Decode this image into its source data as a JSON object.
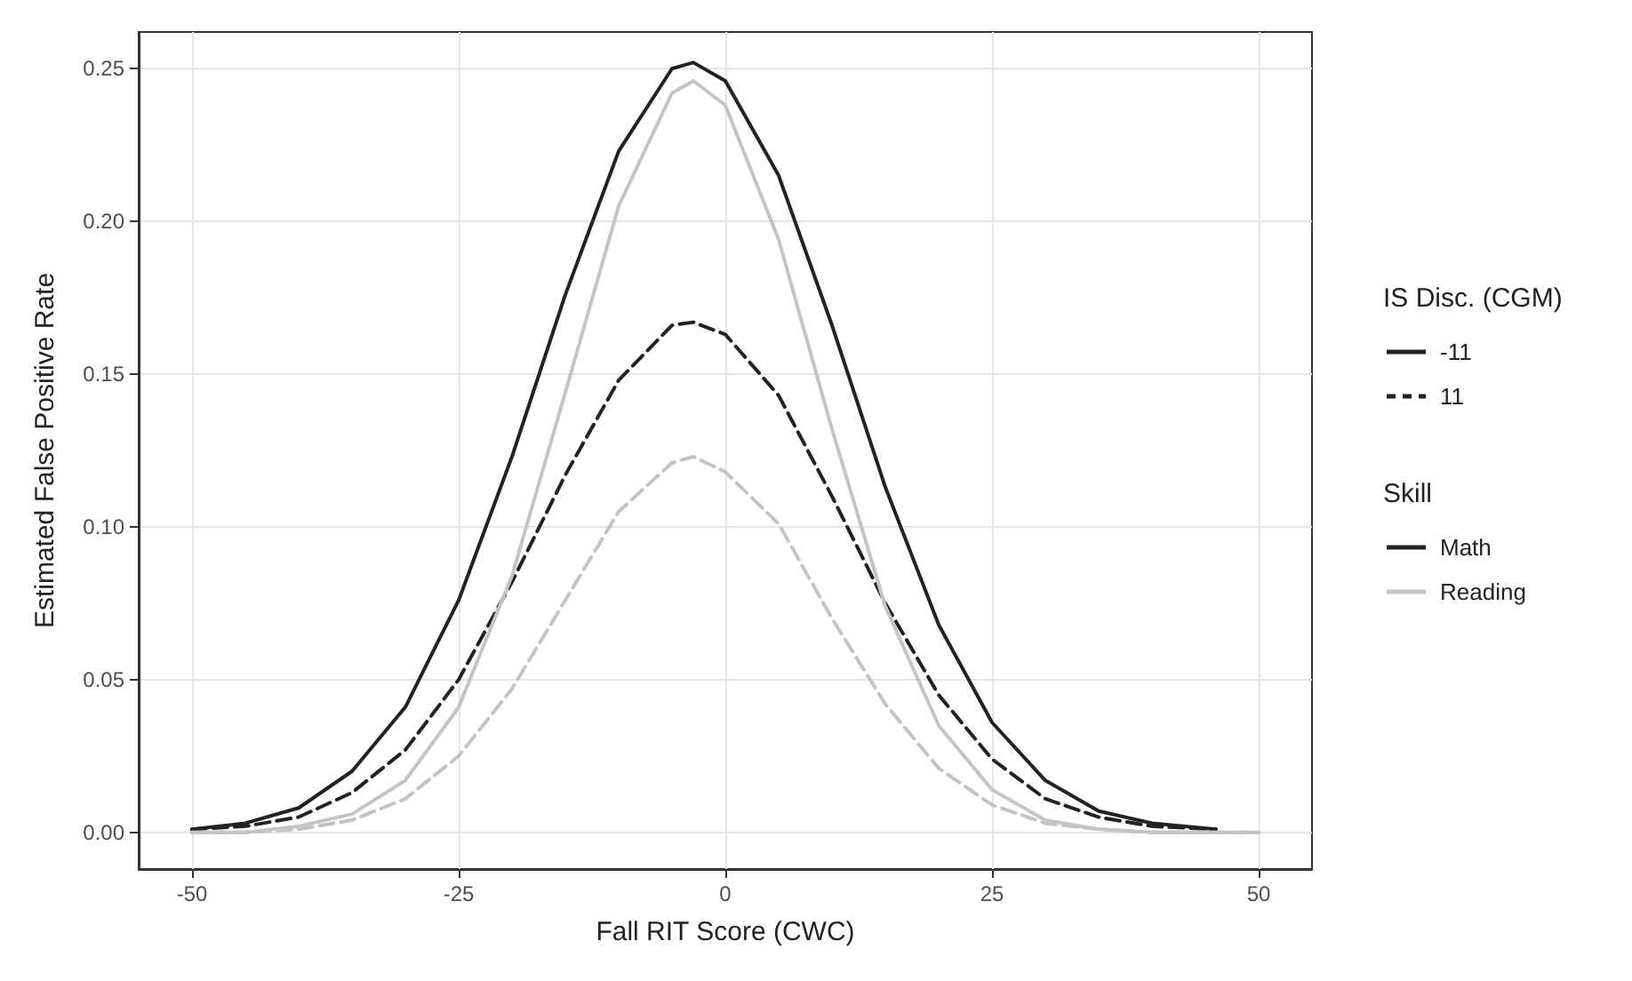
{
  "chart_data": {
    "type": "line",
    "xlabel": "Fall RIT Score (CWC)",
    "ylabel": "Estimated False Positive Rate",
    "legend_title": "IS Disc. (CGM)",
    "annotations": [
      "Skill",
      "Math"
    ],
    "xlim": [
      -55,
      55
    ],
    "xticks": [
      -50,
      -25,
      0,
      25,
      50
    ],
    "ylim": [
      -0.012,
      0.262
    ],
    "yticks": [
      {
        "value": 0,
        "label": "0.00"
      },
      {
        "value": 0.05,
        "label": "0.05"
      },
      {
        "value": 0.1,
        "label": "0.10"
      },
      {
        "value": 0.15,
        "label": "0.15"
      },
      {
        "value": 0.2,
        "label": "0.20"
      },
      {
        "value": 0.25,
        "label": "0.25"
      }
    ],
    "grid": true,
    "legend": "right",
    "marker": "none",
    "series": [
      {
        "name": "-11",
        "color": "#222222",
        "line_style": "solid",
        "x": [
          -50,
          -45,
          -40,
          -35,
          -30,
          -25,
          -20,
          -15,
          -10,
          -5,
          -3,
          0,
          5,
          10,
          15,
          20,
          25,
          30,
          35,
          40,
          46
        ],
        "values": [
          0.001,
          0.003,
          0.008,
          0.02,
          0.041,
          0.076,
          0.123,
          0.176,
          0.223,
          0.25,
          0.252,
          0.246,
          0.215,
          0.166,
          0.113,
          0.068,
          0.036,
          0.017,
          0.007,
          0.003,
          0.001
        ]
      },
      {
        "name": "11",
        "color": "#222222",
        "line_style": "dashed",
        "x": [
          -50,
          -45,
          -40,
          -35,
          -30,
          -25,
          -20,
          -15,
          -10,
          -5,
          -3,
          0,
          5,
          10,
          15,
          20,
          25,
          30,
          35,
          40,
          46
        ],
        "values": [
          0.001,
          0.002,
          0.005,
          0.013,
          0.027,
          0.05,
          0.082,
          0.117,
          0.148,
          0.166,
          0.167,
          0.163,
          0.143,
          0.11,
          0.075,
          0.045,
          0.024,
          0.011,
          0.005,
          0.002,
          0.001
        ]
      },
      {
        "name": "Reading",
        "color": "#c4c4c4",
        "line_style": "solid",
        "x": [
          -50,
          -45,
          -40,
          -35,
          -30,
          -25,
          -20,
          -15,
          -10,
          -5,
          -3,
          0,
          5,
          10,
          15,
          20,
          25,
          30,
          35,
          40,
          50
        ],
        "values": [
          0,
          0,
          0.002,
          0.006,
          0.017,
          0.041,
          0.084,
          0.144,
          0.205,
          0.242,
          0.246,
          0.238,
          0.194,
          0.132,
          0.074,
          0.035,
          0.014,
          0.004,
          0.001,
          0,
          0
        ]
      },
      {
        "color": "#c4c4c4",
        "line_style": "dashed",
        "x": [
          -50,
          -45,
          -40,
          -35,
          -30,
          -25,
          -20,
          -15,
          -10,
          -5,
          -3,
          0,
          5,
          10,
          15,
          20,
          25,
          30,
          35,
          40,
          50
        ],
        "values": [
          0,
          0,
          0.001,
          0.004,
          0.011,
          0.025,
          0.047,
          0.076,
          0.105,
          0.121,
          0.123,
          0.118,
          0.101,
          0.07,
          0.042,
          0.021,
          0.009,
          0.003,
          0.001,
          0,
          0
        ]
      }
    ]
  }
}
